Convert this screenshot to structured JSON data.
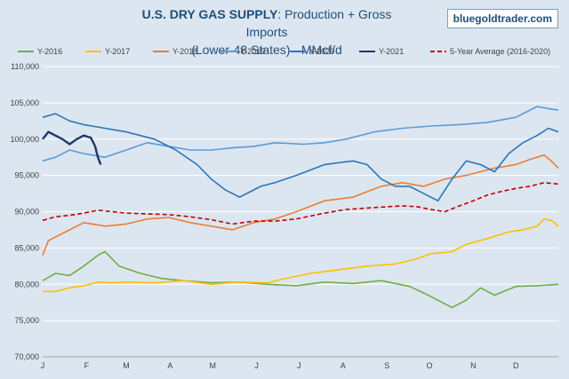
{
  "header": {
    "title_bold": "U.S. DRY GAS SUPPLY",
    "title_rest": ": Production + Gross Imports",
    "subtitle": "(Lower-48 States) - MMcf/d",
    "brand": "bluegoldtrader.com"
  },
  "chart_data": {
    "type": "line",
    "title": "U.S. DRY GAS SUPPLY: Production + Gross Imports (Lower-48 States) - MMcf/d",
    "xlabel": "",
    "ylabel": "",
    "ylim": [
      70000,
      110000
    ],
    "yticks": [
      70000,
      75000,
      80000,
      85000,
      90000,
      95000,
      100000,
      105000,
      110000
    ],
    "ytick_labels": [
      "70,000",
      "75,000",
      "80,000",
      "85,000",
      "90,000",
      "95,000",
      "100,000",
      "105,000",
      "110,000"
    ],
    "x_axis": "day of year (1-365)",
    "month_labels": [
      "J",
      "F",
      "M",
      "A",
      "M",
      "J",
      "J",
      "A",
      "S",
      "O",
      "N",
      "D"
    ],
    "month_start_day": [
      1,
      32,
      60,
      91,
      121,
      152,
      182,
      213,
      244,
      274,
      305,
      335
    ],
    "grid": "horizontal",
    "legend_position": "top",
    "series": [
      {
        "name": "Y-2016",
        "color": "#70ad47",
        "dash": "",
        "points": [
          [
            1,
            80500
          ],
          [
            10,
            81500
          ],
          [
            20,
            81200
          ],
          [
            30,
            82500
          ],
          [
            40,
            84000
          ],
          [
            45,
            84500
          ],
          [
            55,
            82500
          ],
          [
            70,
            81500
          ],
          [
            85,
            80800
          ],
          [
            100,
            80500
          ],
          [
            120,
            80200
          ],
          [
            140,
            80300
          ],
          [
            160,
            80000
          ],
          [
            180,
            79800
          ],
          [
            200,
            80300
          ],
          [
            220,
            80100
          ],
          [
            240,
            80500
          ],
          [
            260,
            79700
          ],
          [
            270,
            78800
          ],
          [
            290,
            76800
          ],
          [
            300,
            77800
          ],
          [
            310,
            79500
          ],
          [
            320,
            78500
          ],
          [
            335,
            79700
          ],
          [
            350,
            79800
          ],
          [
            365,
            80000
          ]
        ]
      },
      {
        "name": "Y-2017",
        "color": "#ffc000",
        "dash": "",
        "points": [
          [
            1,
            79000
          ],
          [
            10,
            79000
          ],
          [
            20,
            79500
          ],
          [
            30,
            79800
          ],
          [
            40,
            80300
          ],
          [
            50,
            80200
          ],
          [
            60,
            80300
          ],
          [
            80,
            80200
          ],
          [
            100,
            80500
          ],
          [
            120,
            80000
          ],
          [
            140,
            80300
          ],
          [
            160,
            80200
          ],
          [
            170,
            80700
          ],
          [
            190,
            81500
          ],
          [
            210,
            82000
          ],
          [
            230,
            82500
          ],
          [
            250,
            82800
          ],
          [
            265,
            83500
          ],
          [
            275,
            84200
          ],
          [
            290,
            84500
          ],
          [
            300,
            85500
          ],
          [
            315,
            86300
          ],
          [
            330,
            87200
          ],
          [
            340,
            87500
          ],
          [
            350,
            88000
          ],
          [
            355,
            89000
          ],
          [
            360,
            88800
          ],
          [
            365,
            88000
          ]
        ]
      },
      {
        "name": "Y-2018",
        "color": "#ed7d31",
        "dash": "",
        "points": [
          [
            1,
            84000
          ],
          [
            5,
            86000
          ],
          [
            15,
            87000
          ],
          [
            30,
            88500
          ],
          [
            45,
            88000
          ],
          [
            60,
            88300
          ],
          [
            75,
            89000
          ],
          [
            90,
            89200
          ],
          [
            105,
            88500
          ],
          [
            120,
            88000
          ],
          [
            135,
            87500
          ],
          [
            150,
            88500
          ],
          [
            165,
            89000
          ],
          [
            180,
            90000
          ],
          [
            200,
            91500
          ],
          [
            220,
            92000
          ],
          [
            240,
            93500
          ],
          [
            255,
            94000
          ],
          [
            270,
            93500
          ],
          [
            285,
            94500
          ],
          [
            300,
            95000
          ],
          [
            310,
            95500
          ],
          [
            320,
            96000
          ],
          [
            335,
            96500
          ],
          [
            345,
            97200
          ],
          [
            355,
            97800
          ],
          [
            360,
            97000
          ],
          [
            365,
            96000
          ]
        ]
      },
      {
        "name": "Y-2019",
        "color": "#5b9bd5",
        "dash": "",
        "points": [
          [
            1,
            97000
          ],
          [
            10,
            97500
          ],
          [
            20,
            98500
          ],
          [
            30,
            98000
          ],
          [
            45,
            97500
          ],
          [
            60,
            98500
          ],
          [
            75,
            99500
          ],
          [
            90,
            99000
          ],
          [
            105,
            98500
          ],
          [
            120,
            98500
          ],
          [
            135,
            98800
          ],
          [
            150,
            99000
          ],
          [
            165,
            99500
          ],
          [
            185,
            99300
          ],
          [
            200,
            99500
          ],
          [
            215,
            100000
          ],
          [
            235,
            101000
          ],
          [
            255,
            101500
          ],
          [
            275,
            101800
          ],
          [
            295,
            102000
          ],
          [
            315,
            102300
          ],
          [
            335,
            103000
          ],
          [
            345,
            104000
          ],
          [
            350,
            104500
          ],
          [
            358,
            104200
          ],
          [
            365,
            104000
          ]
        ]
      },
      {
        "name": "Y-2020",
        "color": "#2e75b6",
        "dash": "",
        "points": [
          [
            1,
            103000
          ],
          [
            10,
            103500
          ],
          [
            20,
            102500
          ],
          [
            30,
            102000
          ],
          [
            45,
            101500
          ],
          [
            60,
            101000
          ],
          [
            70,
            100500
          ],
          [
            80,
            100000
          ],
          [
            95,
            98500
          ],
          [
            110,
            96500
          ],
          [
            120,
            94500
          ],
          [
            130,
            93000
          ],
          [
            140,
            92000
          ],
          [
            155,
            93500
          ],
          [
            165,
            94000
          ],
          [
            180,
            95000
          ],
          [
            200,
            96500
          ],
          [
            220,
            97000
          ],
          [
            230,
            96500
          ],
          [
            240,
            94500
          ],
          [
            250,
            93500
          ],
          [
            260,
            93500
          ],
          [
            270,
            92500
          ],
          [
            280,
            91500
          ],
          [
            290,
            94500
          ],
          [
            300,
            97000
          ],
          [
            310,
            96500
          ],
          [
            320,
            95500
          ],
          [
            330,
            98000
          ],
          [
            340,
            99500
          ],
          [
            350,
            100500
          ],
          [
            358,
            101500
          ],
          [
            365,
            101000
          ]
        ]
      },
      {
        "name": "Y-2021",
        "color": "#1f3864",
        "dash": "",
        "points": [
          [
            1,
            100000
          ],
          [
            5,
            101000
          ],
          [
            10,
            100500
          ],
          [
            15,
            100000
          ],
          [
            20,
            99300
          ],
          [
            25,
            100000
          ],
          [
            30,
            100500
          ],
          [
            35,
            100200
          ],
          [
            38,
            99000
          ],
          [
            40,
            97500
          ],
          [
            42,
            96500
          ]
        ]
      },
      {
        "name": "5-Year Average (2016-2020)",
        "color": "#c00000",
        "dash": "5,3",
        "points": [
          [
            1,
            88800
          ],
          [
            10,
            89300
          ],
          [
            20,
            89500
          ],
          [
            30,
            89800
          ],
          [
            40,
            90200
          ],
          [
            50,
            90000
          ],
          [
            60,
            89800
          ],
          [
            75,
            89700
          ],
          [
            90,
            89600
          ],
          [
            105,
            89300
          ],
          [
            120,
            88900
          ],
          [
            135,
            88300
          ],
          [
            150,
            88700
          ],
          [
            165,
            88700
          ],
          [
            180,
            89000
          ],
          [
            200,
            89800
          ],
          [
            215,
            90300
          ],
          [
            230,
            90500
          ],
          [
            245,
            90700
          ],
          [
            255,
            90800
          ],
          [
            265,
            90700
          ],
          [
            275,
            90300
          ],
          [
            285,
            90000
          ],
          [
            295,
            90800
          ],
          [
            305,
            91500
          ],
          [
            315,
            92300
          ],
          [
            325,
            92800
          ],
          [
            335,
            93200
          ],
          [
            345,
            93500
          ],
          [
            355,
            94000
          ],
          [
            365,
            93800
          ]
        ]
      }
    ]
  }
}
